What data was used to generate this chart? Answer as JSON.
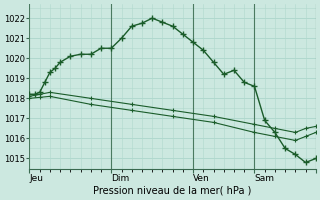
{
  "background_color": "#cce8e0",
  "grid_color": "#b0d8ce",
  "line_color": "#1a5c2a",
  "title": "Pression niveau de la mer( hPa )",
  "ylim": [
    1014.5,
    1022.7
  ],
  "yticks": [
    1015,
    1016,
    1017,
    1018,
    1019,
    1020,
    1021,
    1022
  ],
  "day_tick_x": [
    0,
    72,
    168,
    264,
    336
  ],
  "day_tick_labels": [
    "Jeu",
    "",
    "Dim",
    "Ven",
    "Sam"
  ],
  "series1_x": [
    0,
    6,
    12,
    18,
    24,
    30,
    36,
    48,
    60,
    72,
    84,
    96,
    108,
    120,
    132,
    144,
    156,
    168,
    180,
    192,
    204,
    216,
    228,
    240,
    252,
    264,
    276,
    288,
    300,
    312,
    324,
    336
  ],
  "series1_y": [
    1018.2,
    1018.2,
    1018.3,
    1018.8,
    1019.3,
    1019.5,
    1019.8,
    1020.1,
    1020.2,
    1020.2,
    1020.5,
    1020.5,
    1021.0,
    1021.6,
    1021.75,
    1022.0,
    1021.8,
    1021.6,
    1021.2,
    1020.8,
    1020.4,
    1019.8,
    1019.2,
    1019.4,
    1018.8,
    1018.6,
    1016.9,
    1016.3,
    1015.5,
    1015.2,
    1014.8,
    1015.0
  ],
  "series2_x": [
    0,
    12,
    24,
    72,
    120,
    168,
    216,
    264,
    288,
    312,
    324,
    336
  ],
  "series2_y": [
    1018.1,
    1018.2,
    1018.3,
    1018.0,
    1017.7,
    1017.4,
    1017.1,
    1016.7,
    1016.5,
    1016.3,
    1016.5,
    1016.6
  ],
  "series3_x": [
    0,
    12,
    24,
    72,
    120,
    168,
    216,
    264,
    288,
    312,
    324,
    336
  ],
  "series3_y": [
    1018.0,
    1018.05,
    1018.1,
    1017.7,
    1017.4,
    1017.1,
    1016.8,
    1016.3,
    1016.1,
    1015.9,
    1016.1,
    1016.3
  ],
  "xlim": [
    0,
    336
  ],
  "minor_x_spacing": 12,
  "major_x_positions": [
    0,
    96,
    192,
    264,
    336
  ],
  "major_x_labels": [
    "Jeu",
    "Dim",
    "Ven",
    "Sam",
    ""
  ]
}
